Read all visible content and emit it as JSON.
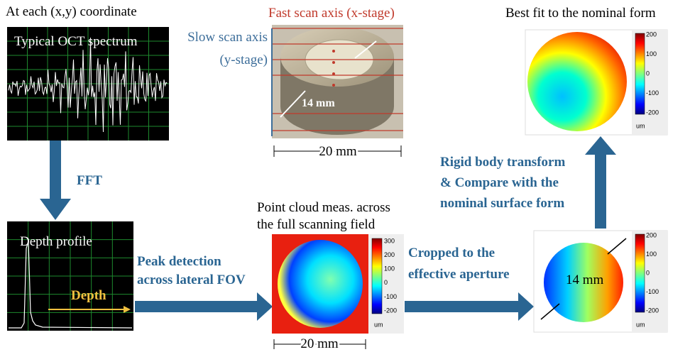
{
  "spectrum": {
    "caption": "At each (x,y) coordinate",
    "label": "Typical OCT spectrum"
  },
  "fft": "FFT",
  "depth_profile": {
    "label": "Depth profile",
    "axis": "Depth"
  },
  "peak_detection": [
    "Peak detection",
    "across lateral FOV"
  ],
  "sample": {
    "fast_axis": "Fast scan axis (x-stage)",
    "slow_axis": [
      "Slow scan axis",
      "(y-stage)"
    ],
    "aperture": "14 mm",
    "width": "20 mm"
  },
  "point_cloud": {
    "caption": [
      "Point cloud meas. across",
      "the full scanning field"
    ],
    "colorbar": {
      "ticks": [
        300,
        200,
        100,
        0,
        -100,
        -200
      ],
      "unit": "um"
    },
    "width": "20 mm"
  },
  "cropped": {
    "label": [
      "Cropped to the",
      "effective aperture"
    ],
    "aperture": "14 mm",
    "colorbar": {
      "ticks": [
        200,
        100,
        0,
        -100,
        -200
      ],
      "unit": "um"
    }
  },
  "transform": [
    "Rigid body transform",
    "& Compare with the",
    "nominal surface form"
  ],
  "best_fit": {
    "caption": "Best fit to the nominal form",
    "colorbar": {
      "ticks": [
        200,
        100,
        0,
        -100,
        -200
      ],
      "unit": "um"
    }
  }
}
